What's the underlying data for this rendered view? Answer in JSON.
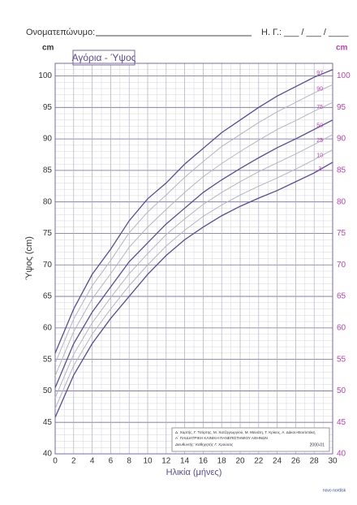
{
  "header": {
    "name_label": "Ονοματεπώνυμο:",
    "date_label": "Η. Γ.:",
    "date_blank": "___ / ___ / ____"
  },
  "chart_data": {
    "type": "line",
    "title": "Αγόρια - Ύψος",
    "y_unit": "cm",
    "y_label": "Ύψος (cm)",
    "x_label": "Ηλικία (μήνες)",
    "x": [
      0,
      2,
      4,
      6,
      8,
      10,
      12,
      14,
      16,
      18,
      20,
      22,
      24,
      26,
      28,
      30
    ],
    "series": [
      {
        "name": "97",
        "color": "#5a4a9a",
        "values": [
          56,
          63,
          68.5,
          72.5,
          77,
          80.5,
          83,
          86,
          88.5,
          91,
          93,
          95,
          96.8,
          98.3,
          99.8,
          101
        ]
      },
      {
        "name": "90",
        "color": "#b4b4c4",
        "values": [
          54.4,
          61.4,
          66.7,
          70.7,
          75.1,
          78.4,
          81.1,
          83.9,
          86.4,
          88.8,
          90.7,
          92.6,
          94.3,
          95.8,
          97.3,
          98.6
        ]
      },
      {
        "name": "75",
        "color": "#b4b4c4",
        "values": [
          52.4,
          59.4,
          64.6,
          68.6,
          72.8,
          76,
          78.8,
          81.5,
          84,
          86.1,
          88,
          89.8,
          91.5,
          92.9,
          94.4,
          95.8
        ]
      },
      {
        "name": "50",
        "color": "#5a4a9a",
        "values": [
          50.5,
          57.5,
          62.5,
          66.5,
          70.5,
          73.5,
          76.5,
          79,
          81.5,
          83.5,
          85.3,
          87,
          88.6,
          90,
          91.5,
          93
        ]
      },
      {
        "name": "25",
        "color": "#b4b4c4",
        "values": [
          48.9,
          55.8,
          60.8,
          64.8,
          68.6,
          71.8,
          74.8,
          77.3,
          79.6,
          81.5,
          83.2,
          84.8,
          86.2,
          87.6,
          89.1,
          90.7
        ]
      },
      {
        "name": "10",
        "color": "#b4b4c4",
        "values": [
          47.2,
          54,
          59,
          63,
          66.7,
          70,
          73,
          75.5,
          77.7,
          79.5,
          81.1,
          82.5,
          83.8,
          85.2,
          86.7,
          88.3
        ]
      },
      {
        "name": "3",
        "color": "#5a4a9a",
        "values": [
          45.8,
          52.5,
          57.5,
          61.5,
          65,
          68.5,
          71.5,
          74,
          76,
          77.8,
          79.3,
          80.6,
          81.8,
          83.2,
          84.6,
          86.3
        ]
      }
    ],
    "xlim": [
      0,
      30
    ],
    "xticks": [
      0,
      2,
      4,
      6,
      8,
      10,
      12,
      14,
      16,
      18,
      20,
      22,
      24,
      26,
      28,
      30
    ],
    "ylim": [
      40,
      102
    ],
    "yticks": [
      40,
      45,
      50,
      55,
      60,
      65,
      70,
      75,
      80,
      85,
      90,
      95,
      100
    ],
    "grid": true,
    "credits": [
      "Δ. Χαρτής, Γ. Τσόρτης, Μ. Χατζηγιωργιού, Μ. Μανάτη, Τ. Κρίκος, Α. Δάκου-Βουτετάκη",
      "Α΄ ΠΑΙΔΙΑΤΡΙΚΗ ΚΛΙΝΙΚΗ ΠΑΝΕΠΙΣΤΗΜΙΟΥ ΑΘΗΝΩΝ",
      "Διευθυντής: Καθηγητής Γ. Χρούσος",
      "2000-01"
    ],
    "logo": "novo nordisk"
  }
}
